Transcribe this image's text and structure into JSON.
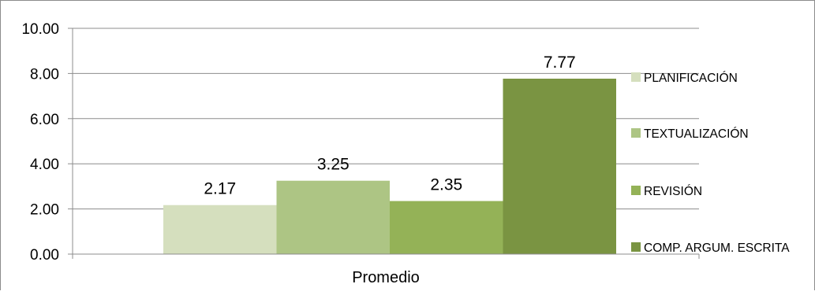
{
  "chart_data": {
    "type": "bar",
    "categories": [
      "Promedio"
    ],
    "series": [
      {
        "name": "PLANIFICACIÓN",
        "values": [
          2.17
        ],
        "color": "#d5dfbe",
        "label": "2.17"
      },
      {
        "name": "TEXTUALIZACIÓN",
        "values": [
          3.25
        ],
        "color": "#adc584",
        "label": "3.25"
      },
      {
        "name": "REVISIÓN",
        "values": [
          2.35
        ],
        "color": "#94b257",
        "label": "2.35"
      },
      {
        "name": "COMP. ARGUM. ESCRITA",
        "values": [
          7.77
        ],
        "color": "#7a9442",
        "label": "7.77"
      }
    ],
    "yticks": [
      "0.00",
      "2.00",
      "4.00",
      "6.00",
      "8.00",
      "10.00"
    ],
    "ylim": [
      0,
      10
    ],
    "grid": true,
    "legend_position": "right"
  }
}
